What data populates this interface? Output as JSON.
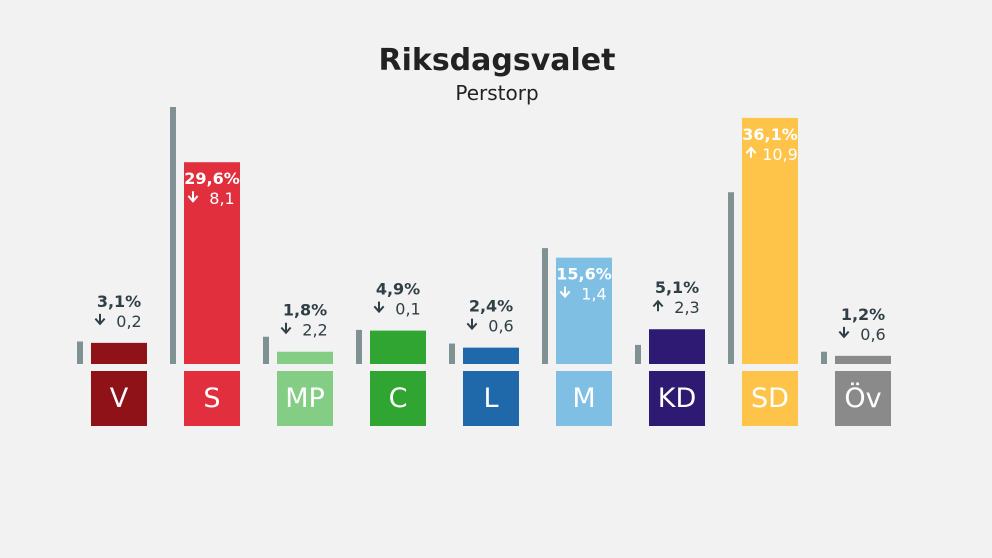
{
  "chart_data": {
    "type": "bar",
    "title": "Riksdagsvalet",
    "subtitle": "Perstorp",
    "categories": [
      "V",
      "S",
      "MP",
      "C",
      "L",
      "M",
      "KD",
      "SD",
      "Öv"
    ],
    "series": [
      {
        "values": [
          3.1,
          29.6,
          1.8,
          4.9,
          2.4,
          15.6,
          5.1,
          36.1,
          1.2
        ]
      },
      {
        "values": [
          3.3,
          37.7,
          4.0,
          5.0,
          3.0,
          17.0,
          2.8,
          25.2,
          1.8
        ]
      }
    ],
    "labels": {
      "percent": [
        "3,1%",
        "29,6%",
        "1,8%",
        "4,9%",
        "2,4%",
        "15,6%",
        "5,1%",
        "36,1%",
        "1,2%"
      ],
      "change": [
        "0,2",
        "8,1",
        "2,2",
        "0,1",
        "0,6",
        "1,4",
        "2,3",
        "10,9",
        "0,6"
      ],
      "direction": [
        "down",
        "down",
        "down",
        "down",
        "down",
        "down",
        "up",
        "up",
        "down"
      ]
    },
    "colors": [
      "#8f1219",
      "#e12f3e",
      "#83cd85",
      "#31a532",
      "#1f69aa",
      "#80bfe4",
      "#2e1a72",
      "#fec44a",
      "#8a8a8a"
    ],
    "previous_color": "#7f9193",
    "ylim": [
      0,
      37.7
    ]
  }
}
